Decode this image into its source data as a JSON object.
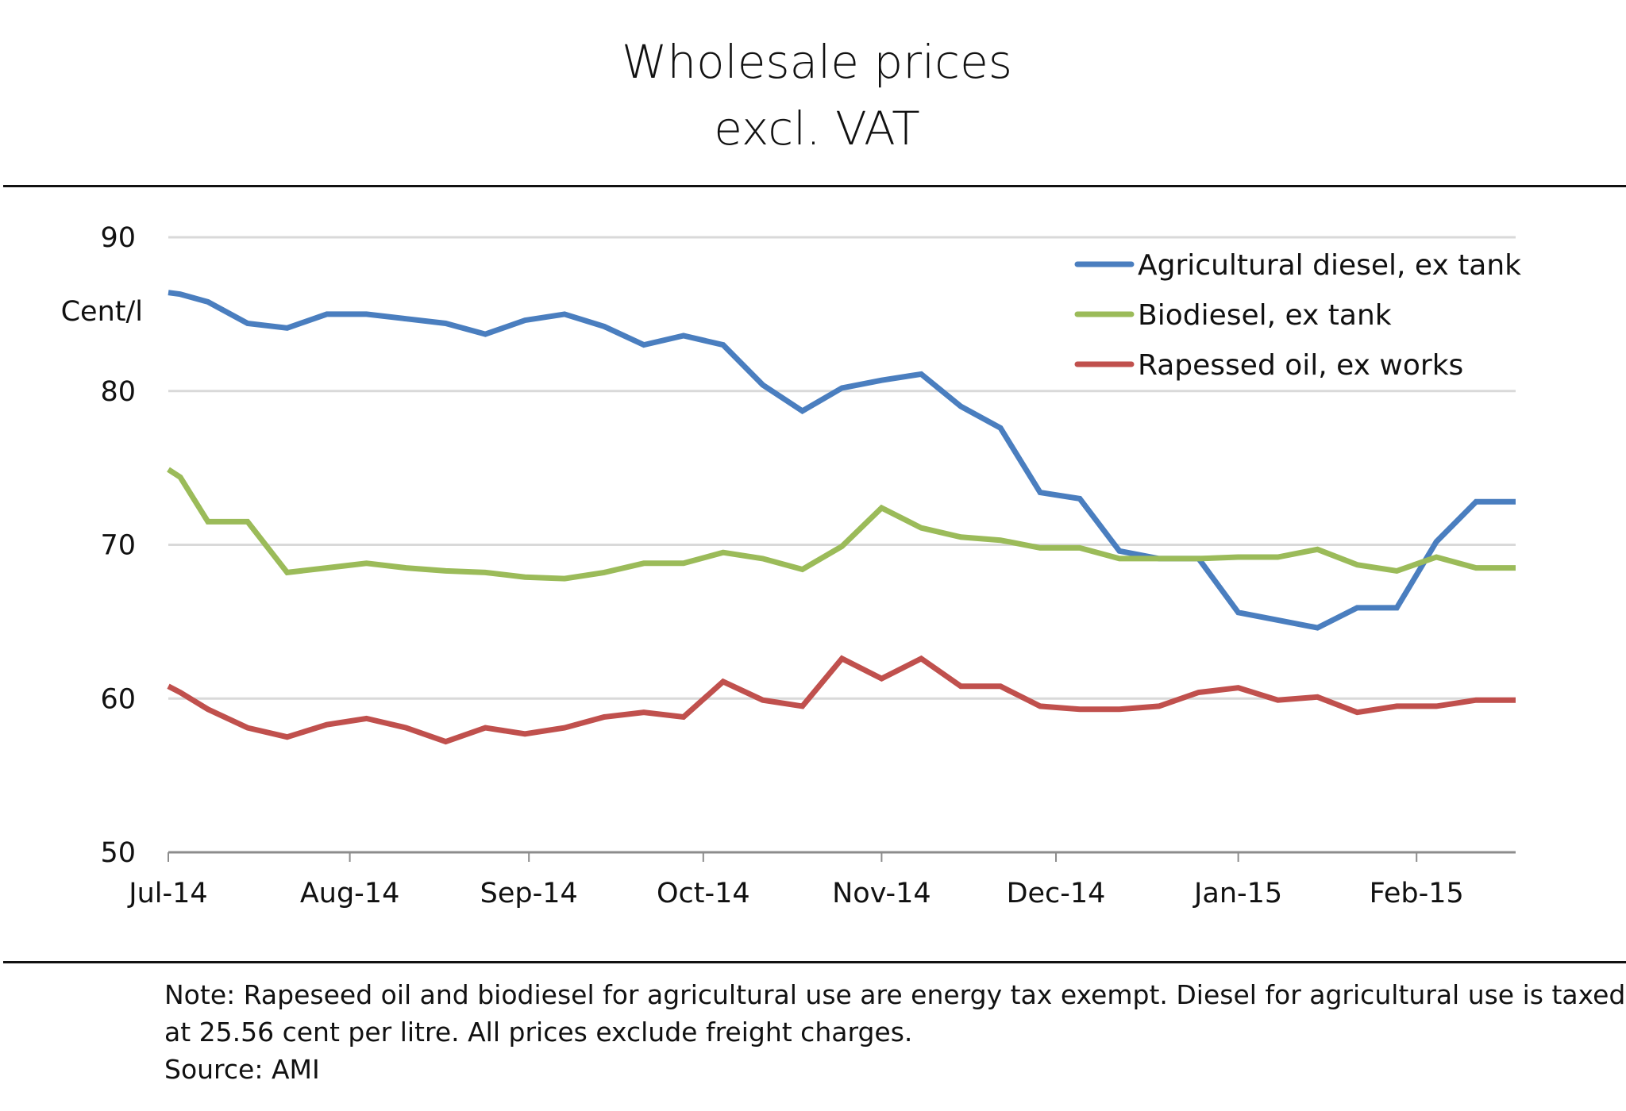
{
  "header": {
    "title_line1": "Wholesale prices",
    "title_line2": "excl. VAT"
  },
  "footer": {
    "note_line1": "Note:  Rapeseed oil and biodiesel  for agricultural use are energy tax exempt. Diesel for agricultural use is taxed",
    "note_line2": "at 25.56 cent per litre. All prices exclude freight charges.",
    "source": "Source: AMI"
  },
  "chart_data": {
    "type": "line",
    "title": "Wholesale prices excl. VAT",
    "xlabel": "",
    "ylabel": "Cent/l",
    "ylim": [
      50,
      90
    ],
    "yticks": [
      50,
      60,
      70,
      80,
      90
    ],
    "xlim": [
      0,
      34
    ],
    "x_unit": "week index from start of Jul-14",
    "month_ticks": [
      {
        "label": "Jul-14",
        "x": 0
      },
      {
        "label": "Aug-14",
        "x": 4.58
      },
      {
        "label": "Sep-14",
        "x": 9.1
      },
      {
        "label": "Oct-14",
        "x": 13.5
      },
      {
        "label": "Nov-14",
        "x": 18.0
      },
      {
        "label": "Dec-14",
        "x": 22.4
      },
      {
        "label": "Jan-15",
        "x": 27.0
      },
      {
        "label": "Feb-15",
        "x": 31.5
      }
    ],
    "grid": true,
    "legend_position": "top-right",
    "x": [
      0,
      0.3,
      1,
      2,
      3,
      4,
      5,
      6,
      7,
      8,
      9,
      10,
      11,
      12,
      13,
      14,
      15,
      16,
      17,
      18,
      19,
      20,
      21,
      22,
      23,
      24,
      25,
      26,
      27,
      28,
      29,
      30,
      31,
      32,
      33,
      34
    ],
    "series": [
      {
        "name": "Agricultural diesel,  ex tank",
        "color": "#4a7ebf",
        "values": [
          86.4,
          86.3,
          85.8,
          84.4,
          84.1,
          85.0,
          85.0,
          84.7,
          84.4,
          83.7,
          84.6,
          85.0,
          84.2,
          83.0,
          83.6,
          83.0,
          80.4,
          78.7,
          80.2,
          80.7,
          81.1,
          79.0,
          77.6,
          73.4,
          73.0,
          69.6,
          69.1,
          69.1,
          65.6,
          65.1,
          64.6,
          65.9,
          65.9,
          70.2,
          72.8,
          72.8
        ]
      },
      {
        "name": "Biodiesel, ex tank",
        "color": "#9bbb59",
        "values": [
          74.9,
          74.4,
          71.5,
          71.5,
          68.2,
          68.5,
          68.8,
          68.5,
          68.3,
          68.2,
          67.9,
          67.8,
          68.2,
          68.8,
          68.8,
          69.5,
          69.1,
          68.4,
          69.9,
          72.4,
          71.1,
          70.5,
          70.3,
          69.8,
          69.8,
          69.1,
          69.1,
          69.1,
          69.2,
          69.2,
          69.7,
          68.7,
          68.3,
          69.2,
          68.5,
          68.5
        ]
      },
      {
        "name": "Rapessed oil, ex works",
        "color": "#c0504d",
        "values": [
          60.8,
          60.4,
          59.3,
          58.1,
          57.5,
          58.3,
          58.7,
          58.1,
          57.2,
          58.1,
          57.7,
          58.1,
          58.8,
          59.1,
          58.8,
          61.1,
          59.9,
          59.5,
          62.6,
          61.3,
          62.6,
          60.8,
          60.8,
          59.5,
          59.3,
          59.3,
          59.5,
          60.4,
          60.7,
          59.9,
          60.1,
          59.1,
          59.5,
          59.5,
          59.9,
          59.9
        ]
      }
    ]
  }
}
